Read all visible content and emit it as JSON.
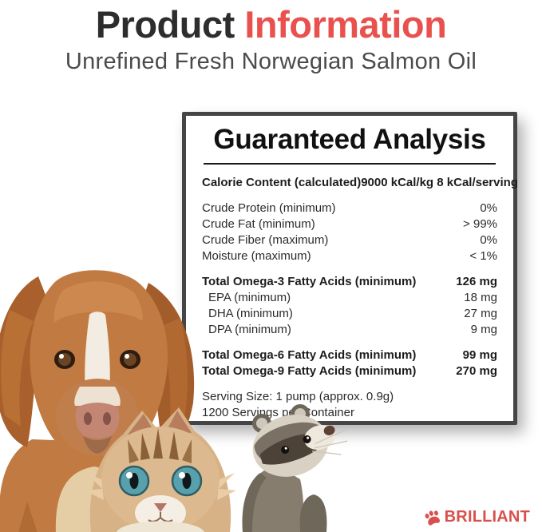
{
  "header": {
    "title": {
      "black": "Product ",
      "accent": "Information"
    },
    "subtitle": "Unrefined Fresh Norwegian Salmon Oil"
  },
  "panel": {
    "title": "Guaranteed Analysis",
    "calorie": {
      "label": "Calorie Content (calculated)",
      "value": "9000 kCal/kg 8 kCal/serving"
    },
    "groups": [
      {
        "rows": [
          {
            "label": "Crude Protein (minimum)",
            "value": "0%"
          },
          {
            "label": "Crude Fat (minimum)",
            "value": "> 99%"
          },
          {
            "label": "Crude Fiber (maximum)",
            "value": "0%"
          },
          {
            "label": "Moisture (maximum)",
            "value": "< 1%"
          }
        ]
      },
      {
        "rows": [
          {
            "label": "Total Omega-3 Fatty Acids (minimum)",
            "value": "126 mg",
            "semibold": true
          },
          {
            "label": "EPA (minimum)",
            "value": "18 mg",
            "indent": true
          },
          {
            "label": "DHA (minimum)",
            "value": "27 mg",
            "indent": true
          },
          {
            "label": "DPA (minimum)",
            "value": "9 mg",
            "indent": true
          }
        ]
      },
      {
        "rows": [
          {
            "label": "Total Omega-6 Fatty Acids (minimum)",
            "value": "99 mg",
            "semibold": true
          },
          {
            "label": "Total Omega-9 Fatty Acids (minimum)",
            "value": "270 mg",
            "semibold": true
          }
        ]
      },
      {
        "rows": [
          {
            "label": "Serving Size: 1 pump (approx. 0.9g)",
            "value": ""
          },
          {
            "label": "1200 Servings per Container",
            "value": ""
          }
        ]
      }
    ]
  },
  "animals": [
    {
      "name": "dog"
    },
    {
      "name": "kitten"
    },
    {
      "name": "ferret"
    }
  ],
  "footer": {
    "brand": "BRILLIANT"
  },
  "colors": {
    "accent_red": "#e8514e",
    "brand_red": "#d9504d",
    "title_dark": "#2d2d2d",
    "panel_border": "#454545"
  }
}
